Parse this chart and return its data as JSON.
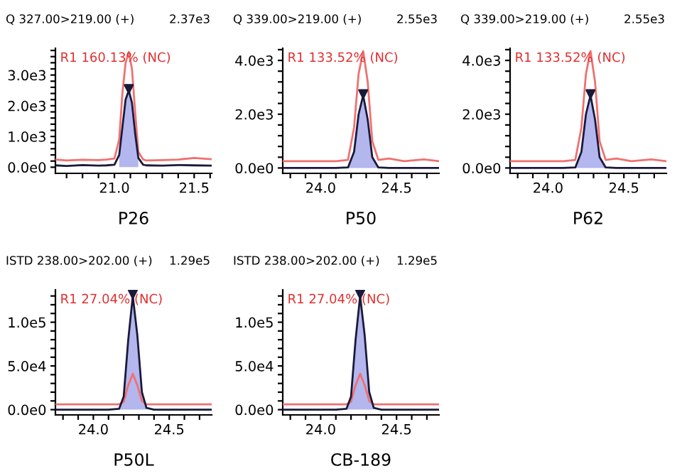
{
  "chart_data": [
    {
      "type": "line",
      "title": "Q 327.00>219.00 (+)",
      "subtitle": "2.37e3",
      "xlabel": "P26",
      "annotations": [
        "R1 160.13% (NC)"
      ],
      "xlim": [
        20.63,
        21.61
      ],
      "ylim": [
        -200,
        3870
      ],
      "grid": false,
      "legend": false,
      "xticks": [
        {
          "value": 20.7,
          "label": null
        },
        {
          "value": 20.8,
          "label": null
        },
        {
          "value": 20.9,
          "label": null
        },
        {
          "value": 21.0,
          "label": "21.0"
        },
        {
          "value": 21.1,
          "label": null
        },
        {
          "value": 21.2,
          "label": null
        },
        {
          "value": 21.3,
          "label": null
        },
        {
          "value": 21.4,
          "label": null
        },
        {
          "value": 21.5,
          "label": "21.5"
        },
        {
          "value": 21.6,
          "label": null
        }
      ],
      "yticks": [
        {
          "value": 0,
          "label": "0.0e0"
        },
        {
          "value": 200,
          "label": null
        },
        {
          "value": 400,
          "label": null
        },
        {
          "value": 600,
          "label": null
        },
        {
          "value": 800,
          "label": null
        },
        {
          "value": 1000,
          "label": "1.0e3"
        },
        {
          "value": 1200,
          "label": null
        },
        {
          "value": 1400,
          "label": null
        },
        {
          "value": 1600,
          "label": null
        },
        {
          "value": 1800,
          "label": null
        },
        {
          "value": 2000,
          "label": "2.0e3"
        },
        {
          "value": 2200,
          "label": null
        },
        {
          "value": 2400,
          "label": null
        },
        {
          "value": 2600,
          "label": null
        },
        {
          "value": 2800,
          "label": null
        },
        {
          "value": 3000,
          "label": "3.0e3"
        },
        {
          "value": 3200,
          "label": null
        },
        {
          "value": 3400,
          "label": null
        },
        {
          "value": 3600,
          "label": null
        },
        {
          "value": 3800,
          "label": null
        }
      ],
      "series": [
        {
          "type": "area",
          "color": "#b4b6ee",
          "x": [
            21.03,
            21.05,
            21.07,
            21.09,
            21.11,
            21.13,
            21.15
          ],
          "values": [
            400,
            1300,
            2200,
            2500,
            2100,
            1100,
            300
          ]
        },
        {
          "type": "line",
          "color": "#f07070",
          "x": [
            20.63,
            20.7,
            20.8,
            20.9,
            20.95,
            21.0,
            21.03,
            21.05,
            21.07,
            21.09,
            21.11,
            21.13,
            21.15,
            21.18,
            21.2,
            21.3,
            21.4,
            21.5,
            21.61
          ],
          "values": [
            250,
            220,
            240,
            230,
            250,
            280,
            900,
            2400,
            3400,
            3750,
            3200,
            1800,
            500,
            250,
            220,
            230,
            250,
            300,
            260
          ]
        },
        {
          "type": "line",
          "color": "#1a1a3a",
          "x": [
            20.63,
            20.7,
            20.8,
            20.9,
            20.95,
            21.0,
            21.03,
            21.05,
            21.07,
            21.09,
            21.11,
            21.13,
            21.15,
            21.18,
            21.2,
            21.3,
            21.4,
            21.5,
            21.61
          ],
          "values": [
            60,
            40,
            70,
            50,
            60,
            80,
            400,
            1300,
            2200,
            2500,
            2100,
            1100,
            300,
            80,
            60,
            50,
            70,
            60,
            50
          ]
        },
        {
          "type": "scatter",
          "marker": "triangle",
          "color": "#1a1a3a",
          "x": [
            21.09
          ],
          "values": [
            2550
          ]
        }
      ]
    },
    {
      "type": "line",
      "title": "Q 339.00>219.00 (+)",
      "subtitle": "2.55e3",
      "xlabel": "P50",
      "annotations": [
        "R1 133.52% (NC)"
      ],
      "xlim": [
        23.75,
        24.78
      ],
      "ylim": [
        -200,
        4450
      ],
      "grid": false,
      "legend": false,
      "xticks": [
        {
          "value": 23.8,
          "label": null
        },
        {
          "value": 23.9,
          "label": null
        },
        {
          "value": 24.0,
          "label": "24.0"
        },
        {
          "value": 24.1,
          "label": null
        },
        {
          "value": 24.2,
          "label": null
        },
        {
          "value": 24.3,
          "label": null
        },
        {
          "value": 24.4,
          "label": null
        },
        {
          "value": 24.5,
          "label": "24.5"
        },
        {
          "value": 24.6,
          "label": null
        },
        {
          "value": 24.7,
          "label": null
        }
      ],
      "yticks": [
        {
          "value": 0,
          "label": "0.0e0"
        },
        {
          "value": 400,
          "label": null
        },
        {
          "value": 800,
          "label": null
        },
        {
          "value": 1200,
          "label": null
        },
        {
          "value": 1600,
          "label": null
        },
        {
          "value": 2000,
          "label": "2.0e3"
        },
        {
          "value": 2400,
          "label": null
        },
        {
          "value": 2800,
          "label": null
        },
        {
          "value": 3200,
          "label": null
        },
        {
          "value": 3600,
          "label": null
        },
        {
          "value": 4000,
          "label": "4.0e3"
        },
        {
          "value": 4400,
          "label": null
        }
      ],
      "series": [
        {
          "type": "area",
          "color": "#b4b6ee",
          "x": [
            24.18,
            24.22,
            24.25,
            24.28,
            24.31,
            24.34,
            24.38
          ],
          "values": [
            20,
            600,
            2000,
            2700,
            1800,
            400,
            20
          ]
        },
        {
          "type": "line",
          "color": "#f07070",
          "x": [
            23.75,
            23.9,
            24.0,
            24.1,
            24.18,
            24.22,
            24.25,
            24.28,
            24.31,
            24.34,
            24.38,
            24.45,
            24.55,
            24.68,
            24.78
          ],
          "values": [
            250,
            250,
            250,
            250,
            300,
            1500,
            3500,
            4350,
            3200,
            1000,
            300,
            350,
            250,
            320,
            250
          ]
        },
        {
          "type": "line",
          "color": "#1a1a3a",
          "x": [
            23.75,
            23.9,
            24.0,
            24.1,
            24.18,
            24.22,
            24.25,
            24.28,
            24.31,
            24.34,
            24.38,
            24.45,
            24.55,
            24.68,
            24.78
          ],
          "values": [
            0,
            0,
            0,
            0,
            20,
            600,
            2000,
            2700,
            1800,
            400,
            20,
            0,
            0,
            0,
            0
          ]
        },
        {
          "type": "scatter",
          "marker": "triangle",
          "color": "#1a1a3a",
          "x": [
            24.28
          ],
          "values": [
            2750
          ]
        }
      ]
    },
    {
      "type": "line",
      "title": "Q 339.00>219.00 (+)",
      "subtitle": "2.55e3",
      "xlabel": "P62",
      "annotations": [
        "R1 133.52% (NC)"
      ],
      "xlim": [
        23.75,
        24.78
      ],
      "ylim": [
        -200,
        4450
      ],
      "grid": false,
      "legend": false,
      "xticks": [
        {
          "value": 23.8,
          "label": null
        },
        {
          "value": 23.9,
          "label": null
        },
        {
          "value": 24.0,
          "label": "24.0"
        },
        {
          "value": 24.1,
          "label": null
        },
        {
          "value": 24.2,
          "label": null
        },
        {
          "value": 24.3,
          "label": null
        },
        {
          "value": 24.4,
          "label": null
        },
        {
          "value": 24.5,
          "label": "24.5"
        },
        {
          "value": 24.6,
          "label": null
        },
        {
          "value": 24.7,
          "label": null
        }
      ],
      "yticks": [
        {
          "value": 0,
          "label": "0.0e0"
        },
        {
          "value": 400,
          "label": null
        },
        {
          "value": 800,
          "label": null
        },
        {
          "value": 1200,
          "label": null
        },
        {
          "value": 1600,
          "label": null
        },
        {
          "value": 2000,
          "label": "2.0e3"
        },
        {
          "value": 2400,
          "label": null
        },
        {
          "value": 2800,
          "label": null
        },
        {
          "value": 3200,
          "label": null
        },
        {
          "value": 3600,
          "label": null
        },
        {
          "value": 4000,
          "label": "4.0e3"
        },
        {
          "value": 4400,
          "label": null
        }
      ],
      "series": [
        {
          "type": "area",
          "color": "#b4b6ee",
          "x": [
            24.18,
            24.22,
            24.25,
            24.28,
            24.31,
            24.34,
            24.38
          ],
          "values": [
            20,
            600,
            2000,
            2700,
            1800,
            400,
            20
          ]
        },
        {
          "type": "line",
          "color": "#f07070",
          "x": [
            23.75,
            23.9,
            24.0,
            24.1,
            24.18,
            24.22,
            24.25,
            24.28,
            24.31,
            24.34,
            24.38,
            24.45,
            24.55,
            24.68,
            24.78
          ],
          "values": [
            250,
            250,
            250,
            250,
            300,
            1500,
            3500,
            4350,
            3200,
            1000,
            300,
            350,
            250,
            320,
            250
          ]
        },
        {
          "type": "line",
          "color": "#1a1a3a",
          "x": [
            23.75,
            23.9,
            24.0,
            24.1,
            24.18,
            24.22,
            24.25,
            24.28,
            24.31,
            24.34,
            24.38,
            24.45,
            24.55,
            24.68,
            24.78
          ],
          "values": [
            0,
            0,
            0,
            0,
            20,
            600,
            2000,
            2700,
            1800,
            400,
            20,
            0,
            0,
            0,
            0
          ]
        },
        {
          "type": "scatter",
          "marker": "triangle",
          "color": "#1a1a3a",
          "x": [
            24.28
          ],
          "values": [
            2750
          ]
        }
      ]
    },
    {
      "type": "line",
      "title": "ISTD 238.00>202.00 (+)",
      "subtitle": "1.29e5",
      "xlabel": "P50L",
      "annotations": [
        "R1 27.04% (NC)"
      ],
      "xlim": [
        23.75,
        24.78
      ],
      "ylim": [
        -6000,
        137000
      ],
      "grid": false,
      "legend": false,
      "xticks": [
        {
          "value": 23.8,
          "label": null
        },
        {
          "value": 23.9,
          "label": null
        },
        {
          "value": 24.0,
          "label": "24.0"
        },
        {
          "value": 24.1,
          "label": null
        },
        {
          "value": 24.2,
          "label": null
        },
        {
          "value": 24.3,
          "label": null
        },
        {
          "value": 24.4,
          "label": null
        },
        {
          "value": 24.5,
          "label": "24.5"
        },
        {
          "value": 24.6,
          "label": null
        },
        {
          "value": 24.7,
          "label": null
        }
      ],
      "yticks": [
        {
          "value": 0,
          "label": "0.0e0"
        },
        {
          "value": 10000,
          "label": null
        },
        {
          "value": 20000,
          "label": null
        },
        {
          "value": 30000,
          "label": null
        },
        {
          "value": 40000,
          "label": null
        },
        {
          "value": 50000,
          "label": "5.0e4"
        },
        {
          "value": 60000,
          "label": null
        },
        {
          "value": 70000,
          "label": null
        },
        {
          "value": 80000,
          "label": null
        },
        {
          "value": 90000,
          "label": null
        },
        {
          "value": 100000,
          "label": "1.0e5"
        },
        {
          "value": 110000,
          "label": null
        },
        {
          "value": 120000,
          "label": null
        },
        {
          "value": 130000,
          "label": null
        }
      ],
      "series": [
        {
          "type": "area",
          "color": "#b4b6ee",
          "x": [
            24.17,
            24.2,
            24.23,
            24.26,
            24.29,
            24.32,
            24.35
          ],
          "values": [
            1000,
            15000,
            80000,
            130000,
            85000,
            20000,
            2000
          ]
        },
        {
          "type": "line",
          "color": "#f07070",
          "x": [
            23.75,
            23.9,
            24.0,
            24.1,
            24.17,
            24.2,
            24.23,
            24.26,
            24.29,
            24.32,
            24.35,
            24.4,
            24.5,
            24.6,
            24.78
          ],
          "values": [
            6000,
            6000,
            6000,
            6000,
            6000,
            9000,
            28000,
            41000,
            28000,
            10000,
            6000,
            6000,
            6000,
            6000,
            6000
          ]
        },
        {
          "type": "line",
          "color": "#1a1a3a",
          "x": [
            23.75,
            23.9,
            24.0,
            24.1,
            24.17,
            24.2,
            24.23,
            24.26,
            24.29,
            24.32,
            24.35,
            24.4,
            24.5,
            24.6,
            24.78
          ],
          "values": [
            0,
            0,
            0,
            0,
            1000,
            15000,
            80000,
            130000,
            85000,
            20000,
            2000,
            0,
            0,
            0,
            0
          ]
        },
        {
          "type": "scatter",
          "marker": "triangle",
          "color": "#1a1a3a",
          "x": [
            24.26
          ],
          "values": [
            132000
          ]
        }
      ]
    },
    {
      "type": "line",
      "title": "ISTD 238.00>202.00 (+)",
      "subtitle": "1.29e5",
      "xlabel": "CB-189",
      "annotations": [
        "R1 27.04% (NC)"
      ],
      "xlim": [
        23.75,
        24.78
      ],
      "ylim": [
        -6000,
        137000
      ],
      "grid": false,
      "legend": false,
      "xticks": [
        {
          "value": 23.8,
          "label": null
        },
        {
          "value": 23.9,
          "label": null
        },
        {
          "value": 24.0,
          "label": "24.0"
        },
        {
          "value": 24.1,
          "label": null
        },
        {
          "value": 24.2,
          "label": null
        },
        {
          "value": 24.3,
          "label": null
        },
        {
          "value": 24.4,
          "label": null
        },
        {
          "value": 24.5,
          "label": "24.5"
        },
        {
          "value": 24.6,
          "label": null
        },
        {
          "value": 24.7,
          "label": null
        }
      ],
      "yticks": [
        {
          "value": 0,
          "label": "0.0e0"
        },
        {
          "value": 10000,
          "label": null
        },
        {
          "value": 20000,
          "label": null
        },
        {
          "value": 30000,
          "label": null
        },
        {
          "value": 40000,
          "label": null
        },
        {
          "value": 50000,
          "label": "5.0e4"
        },
        {
          "value": 60000,
          "label": null
        },
        {
          "value": 70000,
          "label": null
        },
        {
          "value": 80000,
          "label": null
        },
        {
          "value": 90000,
          "label": null
        },
        {
          "value": 100000,
          "label": "1.0e5"
        },
        {
          "value": 110000,
          "label": null
        },
        {
          "value": 120000,
          "label": null
        },
        {
          "value": 130000,
          "label": null
        }
      ],
      "series": [
        {
          "type": "area",
          "color": "#b4b6ee",
          "x": [
            24.17,
            24.2,
            24.23,
            24.26,
            24.29,
            24.32,
            24.35
          ],
          "values": [
            1000,
            15000,
            80000,
            130000,
            85000,
            20000,
            2000
          ]
        },
        {
          "type": "line",
          "color": "#f07070",
          "x": [
            23.75,
            23.9,
            24.0,
            24.1,
            24.17,
            24.2,
            24.23,
            24.26,
            24.29,
            24.32,
            24.35,
            24.4,
            24.5,
            24.6,
            24.78
          ],
          "values": [
            6000,
            6000,
            6000,
            6000,
            6000,
            9000,
            28000,
            41000,
            28000,
            10000,
            6000,
            6000,
            6000,
            6000,
            6000
          ]
        },
        {
          "type": "line",
          "color": "#1a1a3a",
          "x": [
            23.75,
            23.9,
            24.0,
            24.1,
            24.17,
            24.2,
            24.23,
            24.26,
            24.29,
            24.32,
            24.35,
            24.4,
            24.5,
            24.6,
            24.78
          ],
          "values": [
            0,
            0,
            0,
            0,
            1000,
            15000,
            80000,
            130000,
            85000,
            20000,
            2000,
            0,
            0,
            0,
            0
          ]
        },
        {
          "type": "scatter",
          "marker": "triangle",
          "color": "#1a1a3a",
          "x": [
            24.26
          ],
          "values": [
            132000
          ]
        }
      ]
    }
  ]
}
